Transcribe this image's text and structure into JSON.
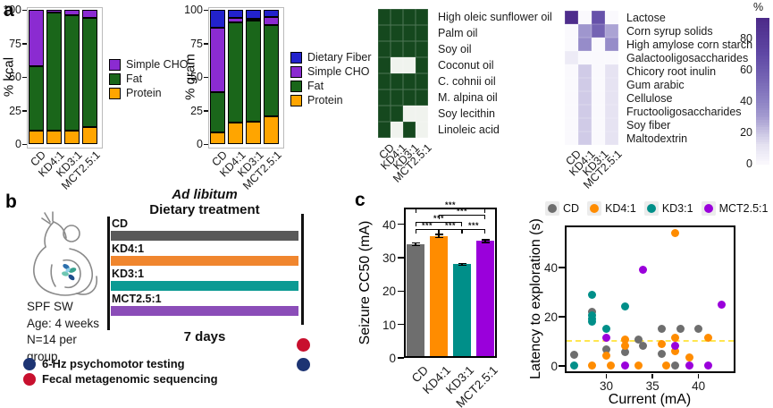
{
  "panels": {
    "a": "a",
    "b": "b",
    "c": "c"
  },
  "colors": {
    "macro": {
      "Protein": "#FFA500",
      "Fat": "#1A661A",
      "Simple CHO": "#8B2BD1",
      "Dietary Fiber": "#2222CC"
    },
    "groups": {
      "CD": "#6E6E6E",
      "KD4:1": "#FF8C00",
      "KD3:1": "#008F89",
      "MCT2.5:1": "#9A00DB"
    },
    "timeline": {
      "CD": "#595959",
      "KD4:1": "#F0862E",
      "KD3:1": "#0B9A93",
      "MCT2.5:1": "#8B4DB8"
    },
    "heatmap_present": "#15481E",
    "heatmap_absent": "#F0F3EE",
    "purple_scale": [
      [
        0,
        "#FAF9FD"
      ],
      [
        12,
        "#E4E1F1"
      ],
      [
        20,
        "#C9C4E3"
      ],
      [
        30,
        "#A49BD0"
      ],
      [
        40,
        "#8D82C4"
      ],
      [
        55,
        "#7463B3"
      ],
      [
        70,
        "#5F48A5"
      ],
      [
        100,
        "#46207F"
      ]
    ],
    "navy": "#1D3473",
    "red": "#C8102E",
    "dashed_line": "#FFE650",
    "panel_border": "#BBBBBB",
    "axis": "#000000"
  },
  "chart_data": [
    {
      "type": "bar",
      "stacked": true,
      "ylabel": "% kcal",
      "categories": [
        "CD",
        "KD4:1",
        "KD3:1",
        "MCT2.5:1"
      ],
      "series": [
        {
          "name": "Protein",
          "values": [
            10,
            10,
            10,
            13
          ]
        },
        {
          "name": "Fat",
          "values": [
            48,
            88,
            86,
            81
          ]
        },
        {
          "name": "Simple CHO",
          "values": [
            42,
            2,
            4,
            6
          ]
        }
      ],
      "yticks": [
        0,
        25,
        50,
        75,
        100
      ],
      "ylim": [
        0,
        100
      ],
      "legend": [
        "Simple CHO",
        "Fat",
        "Protein"
      ],
      "legend_position": "right"
    },
    {
      "type": "bar",
      "stacked": true,
      "ylabel": "% gram",
      "categories": [
        "CD",
        "KD4:1",
        "KD3:1",
        "MCT2.5:1"
      ],
      "series": [
        {
          "name": "Protein",
          "values": [
            9,
            16,
            17,
            21
          ]
        },
        {
          "name": "Fat",
          "values": [
            30,
            75,
            75,
            68
          ]
        },
        {
          "name": "Simple CHO",
          "values": [
            48,
            3,
            1.5,
            6
          ]
        },
        {
          "name": "Dietary Fiber",
          "values": [
            13,
            6,
            6.5,
            5
          ]
        }
      ],
      "yticks": [
        0,
        25,
        50,
        75,
        100
      ],
      "ylim": [
        0,
        100
      ],
      "legend": [
        "Dietary Fiber",
        "Simple CHO",
        "Fat",
        "Protein"
      ],
      "legend_position": "right"
    },
    {
      "type": "heatmap",
      "palette": "green-binary",
      "columns": [
        "CD",
        "KD4:1",
        "KD3:1",
        "MCT2.5:1"
      ],
      "rows": [
        "High oleic sunflower oil",
        "Palm oil",
        "Soy oil",
        "Coconut oil",
        "C. cohnii oil",
        "M. alpina oil",
        "Soy lecithin",
        "Linoleic acid"
      ],
      "values": [
        [
          1,
          1,
          1,
          1
        ],
        [
          1,
          1,
          1,
          1
        ],
        [
          1,
          1,
          1,
          1
        ],
        [
          1,
          0,
          0,
          1
        ],
        [
          1,
          1,
          1,
          1
        ],
        [
          1,
          1,
          1,
          1
        ],
        [
          1,
          1,
          0,
          0
        ],
        [
          1,
          0,
          1,
          0
        ]
      ]
    },
    {
      "type": "heatmap",
      "palette": "purples",
      "columns": [
        "CD",
        "KD4:1",
        "KD3:1",
        "MCT2.5:1"
      ],
      "rows": [
        "Lactose",
        "Corn syrup solids",
        "High amylose corn starch",
        "Galactooligosaccharides",
        "Chicory root inulin",
        "Gum arabic",
        "Cellulose",
        "Fructooligosaccharides",
        "Soy fiber",
        "Maltodextrin"
      ],
      "values": [
        [
          90,
          0,
          65,
          0
        ],
        [
          0,
          32,
          55,
          28
        ],
        [
          0,
          36,
          0,
          36
        ],
        [
          7,
          0,
          0,
          0
        ],
        [
          0,
          18,
          0,
          11
        ],
        [
          0,
          18,
          0,
          11
        ],
        [
          0,
          18,
          0,
          11
        ],
        [
          0,
          18,
          0,
          11
        ],
        [
          0,
          18,
          0,
          11
        ],
        [
          0,
          18,
          0,
          11
        ]
      ],
      "colorbar": {
        "label": "%",
        "ticks": [
          80,
          60,
          40,
          20,
          0
        ],
        "vmax": 93
      }
    },
    {
      "type": "bar",
      "ylabel": "Seizure CC50 (mA)",
      "categories": [
        "CD",
        "KD4:1",
        "KD3:1",
        "MCT2.5:1"
      ],
      "values": [
        34,
        36.5,
        28,
        35
      ],
      "errors": [
        0.4,
        0.5,
        0.3,
        0.4
      ],
      "yticks": [
        0,
        10,
        20,
        30,
        40
      ],
      "ylim": [
        0,
        45
      ],
      "significance": [
        {
          "a": 0,
          "b": 1,
          "label": "***",
          "row": 1
        },
        {
          "a": 1,
          "b": 2,
          "label": "***",
          "row": 1
        },
        {
          "a": 2,
          "b": 3,
          "label": "***",
          "row": 1
        },
        {
          "a": 0,
          "b": 2,
          "label": "***",
          "row": 2
        },
        {
          "a": 1,
          "b": 3,
          "label": "***",
          "row": 3
        },
        {
          "a": 0,
          "b": 3,
          "label": "***",
          "row": 4
        }
      ]
    },
    {
      "type": "scatter",
      "xlabel": "Current (mA)",
      "ylabel": "Latency to exploration (s)",
      "xticks": [
        30,
        35,
        40
      ],
      "yticks": [
        0,
        20,
        40
      ],
      "xlim": [
        25.5,
        44
      ],
      "ylim": [
        -3,
        57
      ],
      "hline": {
        "y": 10,
        "style": "dashed"
      },
      "legend": [
        "CD",
        "KD4:1",
        "KD3:1",
        "MCT2.5:1"
      ],
      "legend_position": "top",
      "series": [
        {
          "name": "CD",
          "points": [
            [
              26.5,
              4.5
            ],
            [
              28.5,
              22
            ],
            [
              30,
              6.5
            ],
            [
              32,
              5.5
            ],
            [
              33.5,
              10.5
            ],
            [
              34,
              8
            ],
            [
              36,
              15
            ],
            [
              36,
              5
            ],
            [
              37.5,
              0
            ],
            [
              38,
              15
            ],
            [
              40,
              15
            ]
          ]
        },
        {
          "name": "KD4:1",
          "points": [
            [
              28.5,
              0
            ],
            [
              30,
              4
            ],
            [
              30.5,
              0
            ],
            [
              32,
              10.5
            ],
            [
              32,
              8
            ],
            [
              33.5,
              0
            ],
            [
              36,
              9
            ],
            [
              36.5,
              0
            ],
            [
              37.5,
              54
            ],
            [
              37.5,
              11.5
            ],
            [
              37.5,
              6
            ],
            [
              39,
              3.5
            ],
            [
              41,
              11.5
            ]
          ]
        },
        {
          "name": "KD3:1",
          "points": [
            [
              26.5,
              0
            ],
            [
              28.5,
              29
            ],
            [
              28.5,
              20.5
            ],
            [
              28.5,
              19
            ],
            [
              28.5,
              18
            ],
            [
              30,
              15
            ],
            [
              32,
              24
            ]
          ]
        },
        {
          "name": "MCT2.5:1",
          "points": [
            [
              30,
              11.5
            ],
            [
              32,
              0
            ],
            [
              34,
              39
            ],
            [
              37.5,
              8
            ],
            [
              39,
              0
            ],
            [
              41,
              0
            ],
            [
              42.5,
              25
            ]
          ]
        }
      ]
    }
  ],
  "panel_b": {
    "title_italic": "Ad libitum",
    "title": "Dietary treatment",
    "duration": "7 days",
    "subject_lines": [
      "SPF SW",
      "Age: 4 weeks",
      "N=14 per",
      "group"
    ],
    "diets": [
      {
        "label": "CD"
      },
      {
        "label": "KD4:1"
      },
      {
        "label": "KD3:1"
      },
      {
        "label": "MCT2.5:1"
      }
    ],
    "timeline_dots": [
      "red",
      "navy"
    ],
    "legend": [
      {
        "label": "6-Hz psychomotor testing",
        "color": "navy"
      },
      {
        "label": "Fecal metagenomic sequencing",
        "color": "red"
      }
    ]
  }
}
